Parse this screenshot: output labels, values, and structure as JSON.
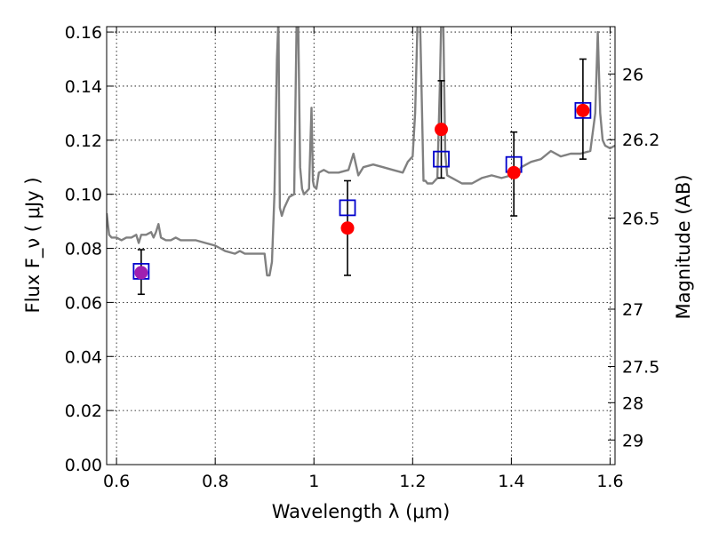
{
  "chart_data": {
    "type": "scatter",
    "xlabel": "Wavelength  λ (μm)",
    "ylabel": "Flux  F_ν  ( μJy )",
    "y2label": "Magnitude (AB)",
    "xlim": [
      0.58,
      1.61
    ],
    "ylim": [
      0.0,
      0.162
    ],
    "grid": true,
    "x_ticks": [
      0.6,
      0.8,
      1.0,
      1.2,
      1.4,
      1.6
    ],
    "x_tick_labels": [
      "0.6",
      "0.8",
      "1",
      "1.2",
      "1.4",
      "1.6"
    ],
    "y_ticks": [
      0.0,
      0.02,
      0.04,
      0.06,
      0.08,
      0.1,
      0.12,
      0.14,
      0.16
    ],
    "y_tick_labels": [
      "0.00",
      "0.02",
      "0.04",
      "0.06",
      "0.08",
      "0.10",
      "0.12",
      "0.14",
      "0.16"
    ],
    "y2_ticks": [
      {
        "label": "26",
        "flux": 0.1445
      },
      {
        "label": "26.2",
        "flux": 0.1202
      },
      {
        "label": "26.5",
        "flux": 0.0912
      },
      {
        "label": "27",
        "flux": 0.0575
      },
      {
        "label": "27.5",
        "flux": 0.0363
      },
      {
        "label": "28",
        "flux": 0.0229
      },
      {
        "label": "29",
        "flux": 0.0091
      }
    ],
    "colors": {
      "template": "#808080",
      "observed": "#ff0000",
      "model": "#0000cc",
      "blend": "#a020b0",
      "errorbar": "#000000"
    },
    "template_spectrum": {
      "x": [
        0.58,
        0.585,
        0.59,
        0.6,
        0.61,
        0.62,
        0.63,
        0.64,
        0.645,
        0.65,
        0.66,
        0.67,
        0.675,
        0.68,
        0.685,
        0.69,
        0.7,
        0.71,
        0.72,
        0.73,
        0.74,
        0.75,
        0.76,
        0.78,
        0.8,
        0.82,
        0.84,
        0.85,
        0.86,
        0.87,
        0.88,
        0.89,
        0.9,
        0.905,
        0.91,
        0.915,
        0.92,
        0.925,
        0.928,
        0.931,
        0.935,
        0.94,
        0.95,
        0.96,
        0.965,
        0.968,
        0.972,
        0.976,
        0.98,
        0.99,
        0.995,
        0.998,
        1.0,
        1.005,
        1.01,
        1.02,
        1.03,
        1.05,
        1.07,
        1.08,
        1.09,
        1.1,
        1.12,
        1.14,
        1.16,
        1.18,
        1.19,
        1.2,
        1.205,
        1.21,
        1.215,
        1.219,
        1.222,
        1.226,
        1.23,
        1.24,
        1.25,
        1.255,
        1.258,
        1.262,
        1.266,
        1.27,
        1.28,
        1.3,
        1.32,
        1.34,
        1.36,
        1.38,
        1.4,
        1.41,
        1.42,
        1.44,
        1.46,
        1.48,
        1.5,
        1.52,
        1.54,
        1.56,
        1.57,
        1.575,
        1.58,
        1.585,
        1.59,
        1.6,
        1.61
      ],
      "y": [
        0.093,
        0.085,
        0.084,
        0.084,
        0.083,
        0.084,
        0.084,
        0.085,
        0.082,
        0.085,
        0.085,
        0.086,
        0.084,
        0.086,
        0.089,
        0.084,
        0.083,
        0.083,
        0.084,
        0.083,
        0.083,
        0.083,
        0.083,
        0.082,
        0.081,
        0.079,
        0.078,
        0.079,
        0.078,
        0.078,
        0.078,
        0.078,
        0.078,
        0.07,
        0.07,
        0.075,
        0.1,
        0.15,
        0.165,
        0.095,
        0.092,
        0.095,
        0.099,
        0.1,
        0.165,
        0.165,
        0.11,
        0.102,
        0.1,
        0.102,
        0.132,
        0.105,
        0.103,
        0.102,
        0.108,
        0.109,
        0.108,
        0.108,
        0.109,
        0.115,
        0.107,
        0.11,
        0.111,
        0.11,
        0.109,
        0.108,
        0.112,
        0.114,
        0.13,
        0.165,
        0.165,
        0.13,
        0.105,
        0.105,
        0.104,
        0.104,
        0.106,
        0.14,
        0.165,
        0.165,
        0.115,
        0.107,
        0.106,
        0.104,
        0.104,
        0.106,
        0.107,
        0.106,
        0.107,
        0.107,
        0.11,
        0.112,
        0.113,
        0.116,
        0.114,
        0.115,
        0.115,
        0.116,
        0.13,
        0.16,
        0.13,
        0.12,
        0.118,
        0.117,
        0.118
      ]
    },
    "series": [
      {
        "role": "observed",
        "marker": "filled-circle",
        "x": [
          0.65,
          1.068,
          1.258,
          1.405,
          1.545
        ],
        "y": [
          0.071,
          0.0875,
          0.124,
          0.108,
          0.131
        ],
        "err_low": [
          0.008,
          0.0175,
          0.018,
          0.016,
          0.018
        ],
        "err_high": [
          0.0085,
          0.0175,
          0.018,
          0.015,
          0.019
        ]
      },
      {
        "role": "model",
        "marker": "open-square",
        "x": [
          0.65,
          1.068,
          1.258,
          1.405,
          1.545
        ],
        "y": [
          0.0715,
          0.095,
          0.113,
          0.111,
          0.131
        ]
      }
    ]
  }
}
